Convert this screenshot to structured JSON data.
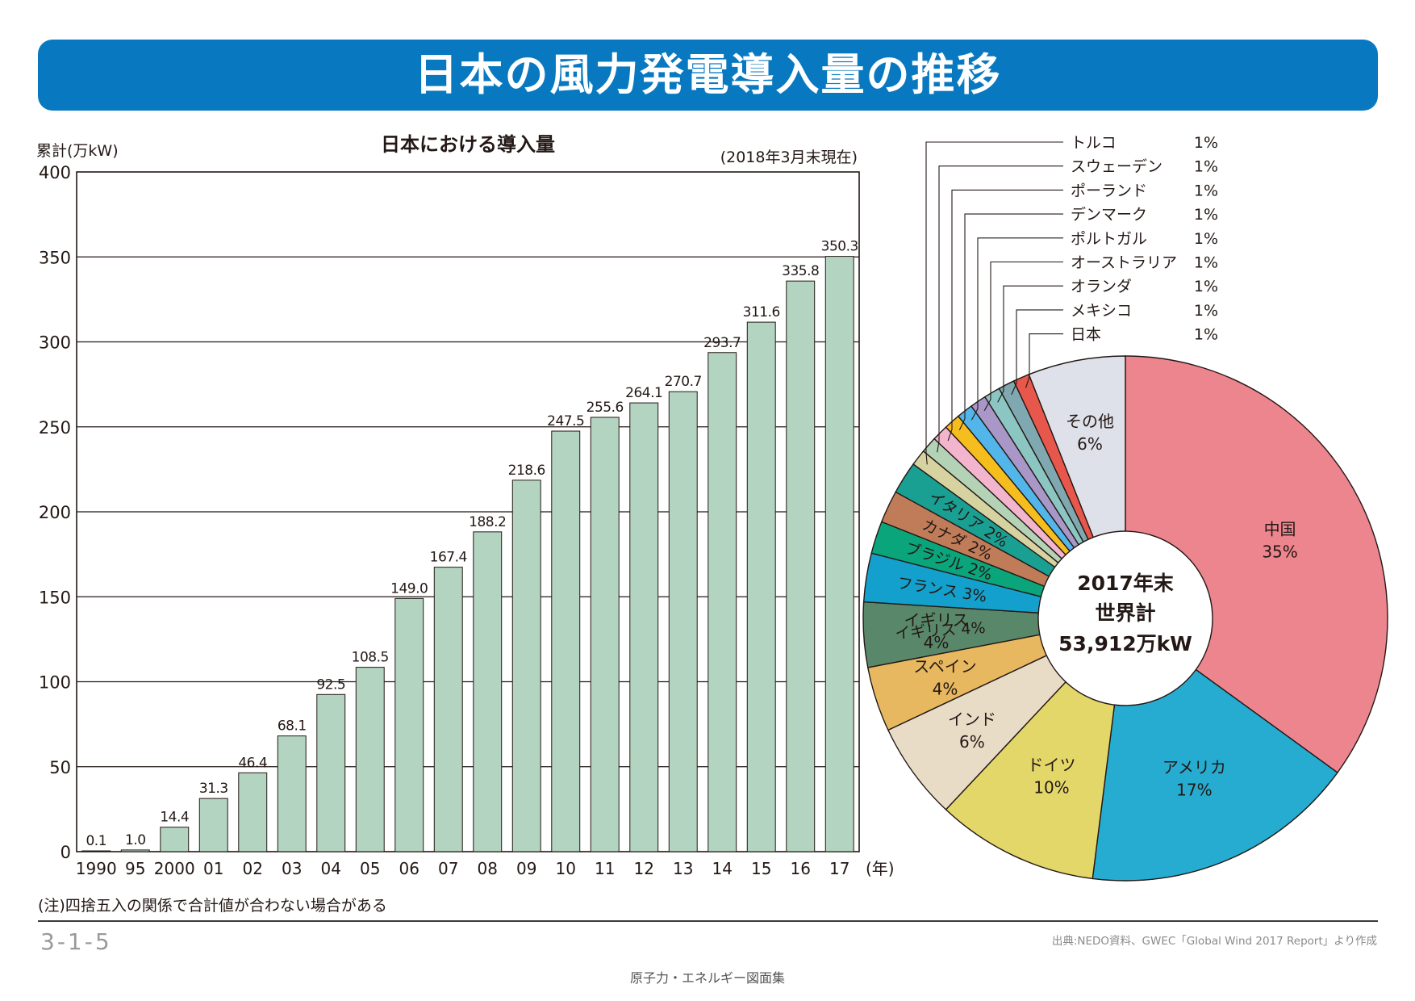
{
  "header": {
    "title": "日本の風力発電導入量の推移"
  },
  "chart_data": [
    {
      "type": "bar",
      "title": "日本における導入量",
      "ylabel": "累計(万kW)",
      "xunit": "(年)",
      "date_note": "(2018年3月末現在)",
      "categories": [
        "1990",
        "95",
        "2000",
        "01",
        "02",
        "03",
        "04",
        "05",
        "06",
        "07",
        "08",
        "09",
        "10",
        "11",
        "12",
        "13",
        "14",
        "15",
        "16",
        "17"
      ],
      "values": [
        0.1,
        1.0,
        14.4,
        31.3,
        46.4,
        68.1,
        92.5,
        108.5,
        149.0,
        167.4,
        188.2,
        218.6,
        247.5,
        255.6,
        264.1,
        270.7,
        293.7,
        311.6,
        335.8,
        350.3
      ],
      "value_labels": [
        "0.1",
        "1.0",
        "14.4",
        "31.3",
        "46.4",
        "68.1",
        "92.5",
        "108.5",
        "149.0",
        "167.4",
        "188.2",
        "218.6",
        "247.5",
        "255.6",
        "264.1",
        "270.7",
        "293.7",
        "311.6",
        "335.8",
        "350.3"
      ],
      "ylim": [
        0,
        400
      ],
      "yticks": [
        0,
        50,
        100,
        150,
        200,
        250,
        300,
        350,
        400
      ],
      "grid": true,
      "bar_color": "#b3d4c0"
    },
    {
      "type": "pie",
      "center_label": [
        "2017年末",
        "世界計",
        "53,912万kW"
      ],
      "slices": [
        {
          "label": "中国",
          "value": 35,
          "pct": "35%",
          "color": "#ed858e"
        },
        {
          "label": "アメリカ",
          "value": 17,
          "pct": "17%",
          "color": "#25acd0"
        },
        {
          "label": "ドイツ",
          "value": 10,
          "pct": "10%",
          "color": "#e4d76a"
        },
        {
          "label": "インド",
          "value": 6,
          "pct": "6%",
          "color": "#e8dcc7"
        },
        {
          "label": "スペイン",
          "value": 4,
          "pct": "4%",
          "color": "#e8b860"
        },
        {
          "label": "イギリス",
          "value": 4,
          "pct": "4%",
          "color": "#58876a"
        },
        {
          "label": "フランス",
          "value": 3,
          "pct": "3%",
          "color": "#13a0cc"
        },
        {
          "label": "ブラジル",
          "value": 2,
          "pct": "2%",
          "color": "#0aa57b"
        },
        {
          "label": "カナダ",
          "value": 2,
          "pct": "2%",
          "color": "#c07c58"
        },
        {
          "label": "イタリア",
          "value": 2,
          "pct": "2%",
          "color": "#1a9f93"
        },
        {
          "label": "トルコ",
          "value": 1,
          "pct": "1%",
          "color": "#d6d3a1"
        },
        {
          "label": "スウェーデン",
          "value": 1,
          "pct": "1%",
          "color": "#b4d3b6"
        },
        {
          "label": "ポーランド",
          "value": 1,
          "pct": "1%",
          "color": "#f2b5cd"
        },
        {
          "label": "デンマーク",
          "value": 1,
          "pct": "1%",
          "color": "#f6bd1f"
        },
        {
          "label": "ポルトガル",
          "value": 1,
          "pct": "1%",
          "color": "#52b6ea"
        },
        {
          "label": "オーストラリア",
          "value": 1,
          "pct": "1%",
          "color": "#a897c7"
        },
        {
          "label": "オランダ",
          "value": 1,
          "pct": "1%",
          "color": "#8cc6c3"
        },
        {
          "label": "メキシコ",
          "value": 1,
          "pct": "1%",
          "color": "#7fa8b0"
        },
        {
          "label": "日本",
          "value": 1,
          "pct": "1%",
          "color": "#e8574b"
        },
        {
          "label": "その他",
          "value": 6,
          "pct": "6%",
          "color": "#dfe1ea"
        }
      ]
    }
  ],
  "note": "(注)四捨五入の関係で合計値が合わない場合がある",
  "footer": {
    "page_code": "3-1-5",
    "source": "出典:NEDO資料、GWEC「Global Wind 2017 Report」より作成",
    "book_title": "原子力・エネルギー図面集"
  }
}
